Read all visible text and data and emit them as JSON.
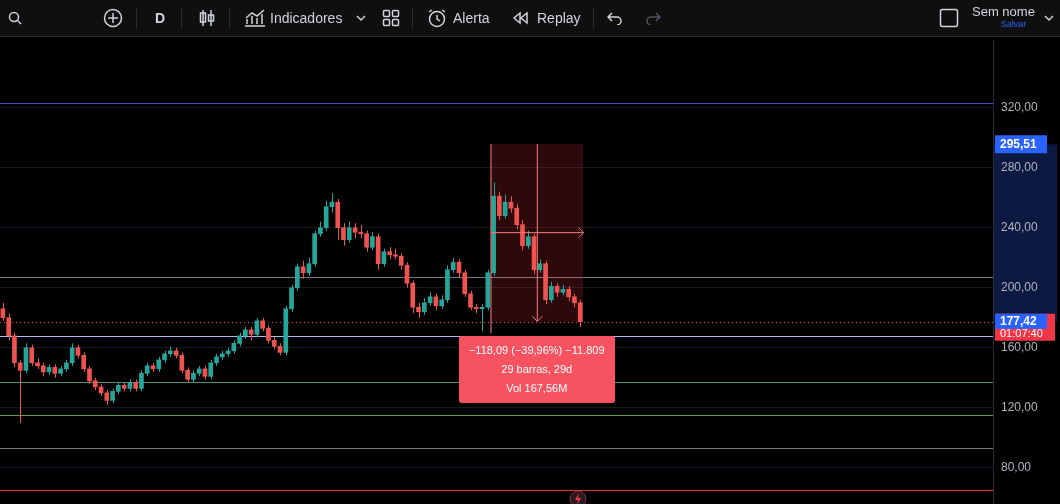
{
  "chart_data": {
    "type": "candlestick",
    "categories": [
      null,
      null,
      null,
      null,
      null,
      null,
      null,
      null,
      null,
      null,
      null,
      null,
      null,
      null,
      null,
      null,
      null,
      null,
      null,
      null,
      null,
      null,
      null,
      null,
      null,
      null,
      null,
      null,
      null,
      null,
      null,
      null,
      null,
      null,
      null,
      null,
      null,
      null,
      null,
      null,
      null,
      null,
      null,
      null,
      null,
      null,
      null,
      null,
      null,
      null,
      null,
      null,
      null,
      null,
      null,
      null,
      null,
      null,
      null,
      null,
      null,
      null,
      null,
      null,
      null,
      null,
      null,
      null,
      null,
      null,
      null,
      null,
      null,
      null,
      null,
      null,
      null,
      null,
      null,
      null,
      null,
      null,
      null,
      null,
      null,
      null,
      null,
      null,
      null,
      null,
      null,
      null,
      null,
      null,
      null,
      null,
      null,
      null,
      null,
      null,
      null,
      null,
      null,
      null,
      null,
      null,
      null,
      null,
      null,
      null,
      null,
      null,
      null,
      null,
      null,
      null,
      null,
      null,
      null,
      null,
      null,
      null,
      null,
      null,
      null,
      null,
      null,
      null,
      null,
      null,
      null,
      null,
      null,
      null,
      null,
      null,
      null,
      null,
      null,
      null,
      null,
      null,
      null,
      null,
      null,
      null,
      null,
      null,
      null,
      null,
      null,
      null,
      null,
      null,
      null,
      null,
      null,
      null,
      null,
      null,
      null,
      null,
      null,
      null,
      null,
      null,
      null,
      null,
      null,
      null,
      null,
      null
    ],
    "ohlc": [
      [
        186,
        190,
        178,
        180
      ],
      [
        180,
        183,
        165,
        168
      ],
      [
        168,
        170,
        147,
        150
      ],
      [
        150,
        152,
        110,
        145
      ],
      [
        145,
        163,
        143,
        160
      ],
      [
        160,
        162,
        148,
        150
      ],
      [
        150,
        153,
        146,
        148
      ],
      [
        148,
        150,
        141,
        144
      ],
      [
        144,
        149,
        142,
        147
      ],
      [
        147,
        149,
        140,
        143
      ],
      [
        143,
        148,
        141,
        146
      ],
      [
        146,
        152,
        144,
        150
      ],
      [
        150,
        163,
        148,
        160
      ],
      [
        160,
        162,
        153,
        155
      ],
      [
        155,
        157,
        144,
        146
      ],
      [
        146,
        148,
        136,
        138
      ],
      [
        138,
        140,
        132,
        134
      ],
      [
        134,
        136,
        128,
        130
      ],
      [
        130,
        132,
        122,
        125
      ],
      [
        125,
        133,
        123,
        131
      ],
      [
        131,
        137,
        129,
        135
      ],
      [
        135,
        137,
        131,
        133
      ],
      [
        133,
        139,
        131,
        137
      ],
      [
        137,
        139,
        131,
        133
      ],
      [
        133,
        145,
        131,
        143
      ],
      [
        143,
        150,
        141,
        148
      ],
      [
        148,
        150,
        144,
        146
      ],
      [
        146,
        154,
        144,
        152
      ],
      [
        152,
        158,
        150,
        156
      ],
      [
        156,
        161,
        154,
        158
      ],
      [
        158,
        160,
        153,
        155
      ],
      [
        155,
        157,
        143,
        145
      ],
      [
        145,
        147,
        137,
        139
      ],
      [
        139,
        145,
        137,
        143
      ],
      [
        143,
        148,
        141,
        146
      ],
      [
        146,
        148,
        139,
        141
      ],
      [
        141,
        152,
        139,
        150
      ],
      [
        150,
        156,
        148,
        154
      ],
      [
        154,
        158,
        152,
        156
      ],
      [
        156,
        160,
        154,
        158
      ],
      [
        158,
        165,
        156,
        163
      ],
      [
        163,
        170,
        161,
        168
      ],
      [
        168,
        174,
        166,
        172
      ],
      [
        172,
        174,
        165,
        169
      ],
      [
        169,
        180,
        167,
        178
      ],
      [
        178,
        180,
        171,
        173
      ],
      [
        173,
        175,
        163,
        165
      ],
      [
        165,
        167,
        159,
        161
      ],
      [
        161,
        163,
        155,
        157
      ],
      [
        157,
        188,
        155,
        186
      ],
      [
        186,
        202,
        184,
        200
      ],
      [
        200,
        216,
        198,
        214
      ],
      [
        214,
        218,
        206,
        210
      ],
      [
        210,
        220,
        208,
        216
      ],
      [
        216,
        238,
        214,
        236
      ],
      [
        236,
        244,
        234,
        240
      ],
      [
        240,
        258,
        238,
        254
      ],
      [
        254,
        263,
        250,
        257
      ],
      [
        257,
        259,
        232,
        240
      ],
      [
        240,
        243,
        228,
        232
      ],
      [
        232,
        244,
        230,
        240
      ],
      [
        240,
        243,
        233,
        237
      ],
      [
        237,
        242,
        233,
        236
      ],
      [
        236,
        238,
        224,
        227
      ],
      [
        227,
        237,
        225,
        234
      ],
      [
        234,
        236,
        212,
        216
      ],
      [
        216,
        226,
        214,
        224
      ],
      [
        224,
        227,
        219,
        222
      ],
      [
        222,
        226,
        219,
        221
      ],
      [
        221,
        223,
        212,
        215
      ],
      [
        215,
        217,
        200,
        203
      ],
      [
        203,
        205,
        183,
        187
      ],
      [
        187,
        190,
        180,
        184
      ],
      [
        184,
        193,
        182,
        190
      ],
      [
        190,
        197,
        188,
        194
      ],
      [
        194,
        196,
        185,
        188
      ],
      [
        188,
        195,
        186,
        192
      ],
      [
        192,
        215,
        190,
        212
      ],
      [
        212,
        220,
        210,
        217
      ],
      [
        217,
        219,
        207,
        210
      ],
      [
        210,
        212,
        194,
        196
      ],
      [
        196,
        198,
        185,
        187
      ],
      [
        187,
        189,
        183,
        186
      ],
      [
        186,
        189,
        171,
        187
      ],
      [
        187,
        212,
        185,
        210
      ],
      [
        210,
        270,
        208,
        261
      ],
      [
        261,
        264,
        245,
        248
      ],
      [
        248,
        262,
        246,
        257
      ],
      [
        257,
        261,
        250,
        253
      ],
      [
        253,
        256,
        239,
        242
      ],
      [
        242,
        245,
        225,
        228
      ],
      [
        228,
        238,
        226,
        234
      ],
      [
        234,
        236,
        209,
        212
      ],
      [
        212,
        219,
        210,
        216
      ],
      [
        216,
        218,
        189,
        192
      ],
      [
        192,
        204,
        190,
        201
      ],
      [
        201,
        203,
        194,
        197
      ],
      [
        197,
        202,
        195,
        199
      ],
      [
        199,
        201,
        191,
        194
      ],
      [
        194,
        196,
        187,
        190
      ],
      [
        190,
        192,
        174,
        177.42
      ],
      null,
      null,
      null,
      null,
      null,
      null,
      null,
      null,
      null,
      null,
      null,
      null,
      null,
      null,
      null,
      null,
      null,
      null,
      null,
      null,
      null,
      null,
      null,
      null,
      null,
      null,
      null,
      null,
      null,
      null,
      null,
      null,
      null,
      null,
      null,
      null,
      null,
      null,
      null,
      null,
      null,
      null,
      null,
      null,
      null,
      null,
      null,
      null,
      null,
      null,
      null,
      null,
      null,
      null,
      null,
      null,
      null,
      null,
      null,
      null,
      null,
      null,
      null,
      null,
      null,
      null,
      null,
      null,
      null,
      null,
      null
    ],
    "ylim": [
      56,
      365
    ],
    "yticks": [
      {
        "value": 80,
        "label": "80,00"
      },
      {
        "value": 120,
        "label": "120,00"
      },
      {
        "value": 160,
        "label": "160,00"
      },
      {
        "value": 200,
        "label": "200,00"
      },
      {
        "value": 240,
        "label": "240,00"
      },
      {
        "value": 280,
        "label": "280,00"
      },
      {
        "value": 320,
        "label": "320,00"
      }
    ],
    "grid": "y",
    "tick_labels": "y",
    "ref_lines": [
      {
        "axis": "y",
        "value": 323,
        "color": "#3b4fc4"
      },
      {
        "axis": "y",
        "value": 207,
        "color": "#787b86"
      },
      {
        "axis": "y",
        "value": 168,
        "color": "#b2b5f0"
      },
      {
        "axis": "y",
        "value": 137,
        "color": "#4d8f7a"
      },
      {
        "axis": "y",
        "value": 115,
        "color": "#6a9a5a"
      },
      {
        "axis": "y",
        "value": 93,
        "color": "#787b86"
      },
      {
        "axis": "y",
        "value": 65,
        "color": "#f23645"
      },
      {
        "axis": "y",
        "value": 177.42,
        "label": "177,42",
        "color": "#f23645",
        "line_style": "dotted"
      }
    ],
    "bands": [
      {
        "axis": "y",
        "from": 177.42,
        "to": 295.51,
        "color": "#f23645"
      }
    ],
    "annotations": [
      "−118,09 (−39,96%) −11.809",
      "29 barras, 29d",
      "Vol 167,56M",
      "295,51",
      "01:07:40",
      "D",
      "Indicadores",
      "Alerta",
      "Replay",
      "Sem nome",
      "Salvar"
    ]
  }
}
